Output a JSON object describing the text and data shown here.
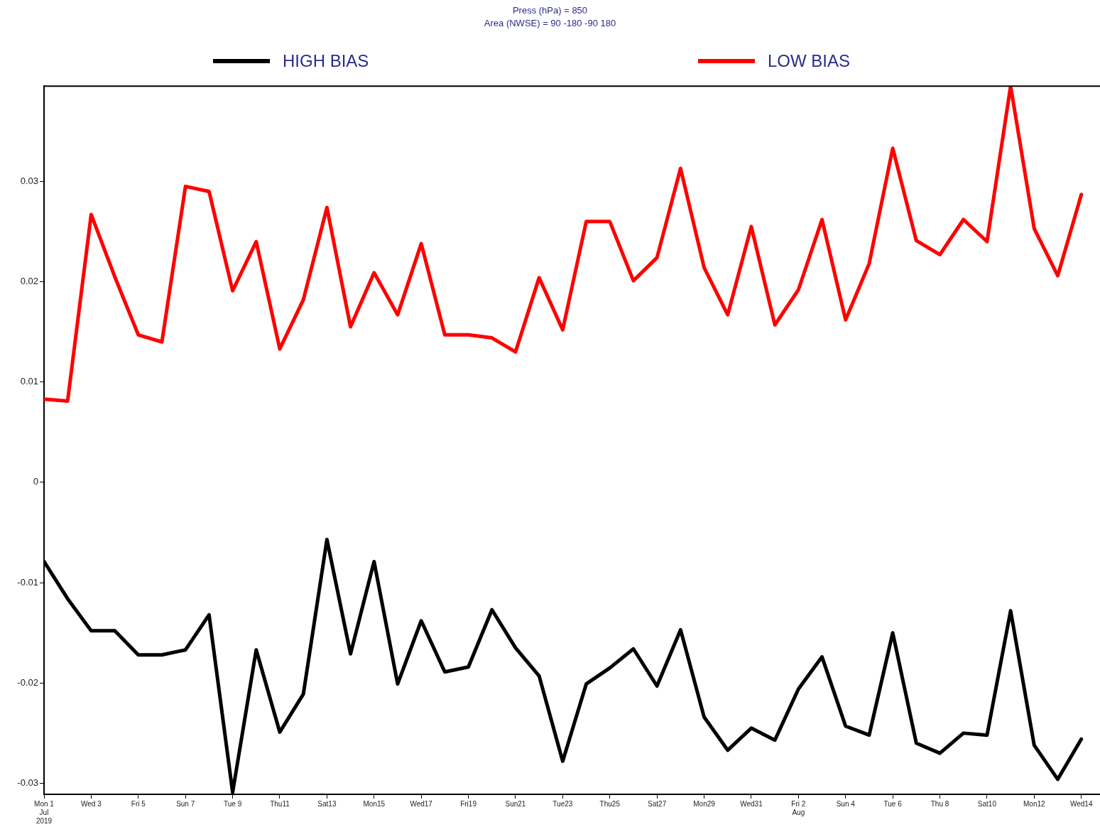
{
  "chart_data": {
    "type": "line",
    "title": "Press (hPa) = 850",
    "subtitle": "Area (NWSE) = 90 -180 -90 180",
    "x": [
      "2019-07-01",
      "2019-07-02",
      "2019-07-03",
      "2019-07-04",
      "2019-07-05",
      "2019-07-06",
      "2019-07-07",
      "2019-07-08",
      "2019-07-09",
      "2019-07-10",
      "2019-07-11",
      "2019-07-12",
      "2019-07-13",
      "2019-07-14",
      "2019-07-15",
      "2019-07-16",
      "2019-07-17",
      "2019-07-18",
      "2019-07-19",
      "2019-07-20",
      "2019-07-21",
      "2019-07-22",
      "2019-07-23",
      "2019-07-24",
      "2019-07-25",
      "2019-07-26",
      "2019-07-27",
      "2019-07-28",
      "2019-07-29",
      "2019-07-30",
      "2019-07-31",
      "2019-08-01",
      "2019-08-02",
      "2019-08-03",
      "2019-08-04",
      "2019-08-05",
      "2019-08-06",
      "2019-08-07",
      "2019-08-08",
      "2019-08-09",
      "2019-08-10",
      "2019-08-11",
      "2019-08-12",
      "2019-08-13",
      "2019-08-14"
    ],
    "series": [
      {
        "name": "HIGH BIAS",
        "color": "#000000",
        "values": [
          -0.0079,
          -0.0116,
          -0.0148,
          -0.0148,
          -0.0172,
          -0.0172,
          -0.0167,
          -0.0132,
          -0.0309,
          -0.0167,
          -0.0249,
          -0.0211,
          -0.0057,
          -0.0171,
          -0.0079,
          -0.0201,
          -0.0138,
          -0.0189,
          -0.0184,
          -0.0127,
          -0.0165,
          -0.0193,
          -0.0278,
          -0.0201,
          -0.0185,
          -0.0166,
          -0.0203,
          -0.0147,
          -0.0234,
          -0.0267,
          -0.0245,
          -0.0257,
          -0.0206,
          -0.0174,
          -0.0243,
          -0.0252,
          -0.015,
          -0.026,
          -0.027,
          -0.025,
          -0.0252,
          -0.0128,
          -0.0262,
          -0.0296,
          -0.0256
        ]
      },
      {
        "name": "LOW BIAS",
        "color": "#ff0000",
        "values": [
          0.0083,
          0.0081,
          0.0267,
          0.0205,
          0.0147,
          0.014,
          0.0295,
          0.029,
          0.0191,
          0.024,
          0.0133,
          0.0182,
          0.0274,
          0.0155,
          0.0209,
          0.0167,
          0.0238,
          0.0147,
          0.0147,
          0.0144,
          0.013,
          0.0204,
          0.0152,
          0.026,
          0.026,
          0.0201,
          0.0224,
          0.0313,
          0.0214,
          0.0167,
          0.0255,
          0.0157,
          0.0192,
          0.0262,
          0.0162,
          0.0218,
          0.0333,
          0.0241,
          0.0227,
          0.0262,
          0.024,
          0.0395,
          0.0253,
          0.0206,
          0.0287
        ]
      }
    ],
    "xlim": [
      "2019-07-01",
      "2019-08-14T19:00"
    ],
    "xticks": [
      {
        "value": "2019-07-01",
        "label": "Mon 1\nJul\n2019"
      },
      {
        "value": "2019-07-03",
        "label": "Wed 3"
      },
      {
        "value": "2019-07-05",
        "label": "Fri 5"
      },
      {
        "value": "2019-07-07",
        "label": "Sun 7"
      },
      {
        "value": "2019-07-09",
        "label": "Tue 9"
      },
      {
        "value": "2019-07-11",
        "label": "Thu11"
      },
      {
        "value": "2019-07-13",
        "label": "Sat13"
      },
      {
        "value": "2019-07-15",
        "label": "Mon15"
      },
      {
        "value": "2019-07-17",
        "label": "Wed17"
      },
      {
        "value": "2019-07-19",
        "label": "Fri19"
      },
      {
        "value": "2019-07-21",
        "label": "Sun21"
      },
      {
        "value": "2019-07-23",
        "label": "Tue23"
      },
      {
        "value": "2019-07-25",
        "label": "Thu25"
      },
      {
        "value": "2019-07-27",
        "label": "Sat27"
      },
      {
        "value": "2019-07-29",
        "label": "Mon29"
      },
      {
        "value": "2019-07-31",
        "label": "Wed31"
      },
      {
        "value": "2019-08-02",
        "label": "Fri 2\nAug"
      },
      {
        "value": "2019-08-04",
        "label": "Sun 4"
      },
      {
        "value": "2019-08-06",
        "label": "Tue 6"
      },
      {
        "value": "2019-08-08",
        "label": "Thu 8"
      },
      {
        "value": "2019-08-10",
        "label": "Sat10"
      },
      {
        "value": "2019-08-12",
        "label": "Mon12"
      },
      {
        "value": "2019-08-14",
        "label": "Wed14"
      }
    ],
    "ylim": [
      -0.0311,
      0.0395
    ],
    "yticks": [
      -0.03,
      -0.02,
      -0.01,
      0,
      0.01,
      0.02,
      0.03
    ],
    "grid": false,
    "legend": "top",
    "line_style": "solid",
    "marker": "none"
  }
}
